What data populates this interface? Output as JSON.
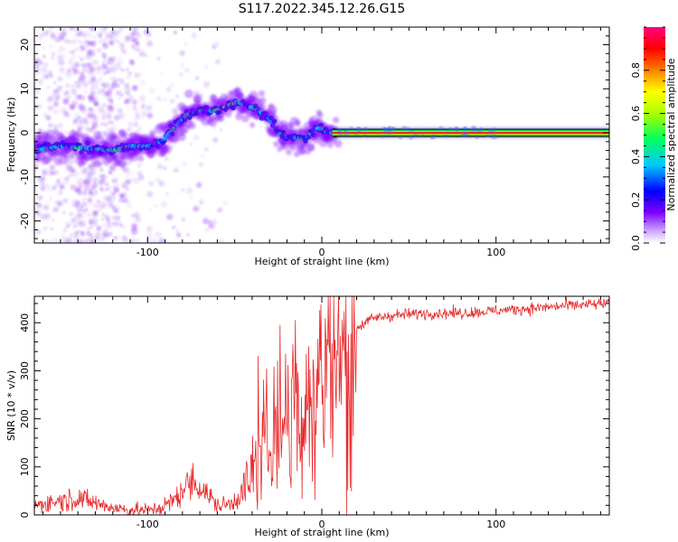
{
  "title": "S117.2022.345.12.26.G15",
  "chart_data": [
    {
      "type": "heatmap",
      "xlabel": "Height of straight line (km)",
      "ylabel": "Frequency (Hz)",
      "xlim": [
        -165,
        165
      ],
      "ylim": [
        -25,
        24
      ],
      "xticks": [
        -100,
        0,
        100
      ],
      "yticks": [
        -20,
        -10,
        0,
        10,
        20
      ],
      "grid": false,
      "ridge_track": {
        "x": [
          -165,
          -150,
          -135,
          -120,
          -110,
          -100,
          -92,
          -85,
          -78,
          -70,
          -62,
          -55,
          -48,
          -42,
          -36,
          -30,
          -25,
          -20,
          -15,
          -10,
          -6,
          -3,
          0,
          3,
          6,
          165
        ],
        "y": [
          -4,
          -3,
          -3.5,
          -4,
          -3,
          -3,
          -2,
          1,
          4,
          5,
          5,
          6,
          7,
          6,
          5,
          3,
          0,
          -1,
          -1,
          -1.5,
          0,
          1,
          1,
          0,
          0,
          0
        ]
      },
      "colorbar": {
        "label": "Normalized spectral amplitude",
        "range": [
          0,
          1
        ],
        "ticks": [
          0.0,
          0.2,
          0.4,
          0.6,
          0.8
        ],
        "colormap": [
          "#ffffff",
          "#7e00ff",
          "#0000ff",
          "#00c8ff",
          "#00ff00",
          "#ffff00",
          "#ff8000",
          "#ff0000",
          "#ff0080"
        ]
      }
    },
    {
      "type": "line",
      "xlabel": "Height of straight line (km)",
      "ylabel": "SNR (10 * v/v)",
      "xlim": [
        -165,
        165
      ],
      "ylim": [
        0,
        455
      ],
      "xticks": [
        -100,
        0,
        100
      ],
      "yticks": [
        0,
        100,
        200,
        300,
        400
      ],
      "grid": false,
      "color": "#e8282a",
      "series": [
        {
          "x": [
            -165,
            -150,
            -140,
            -130,
            -120,
            -110,
            -100,
            -92,
            -85,
            -80,
            -75,
            -70,
            -65,
            -60,
            -55,
            -50,
            -45,
            -40,
            -35,
            -30,
            -25,
            -20,
            -15,
            -10,
            -5,
            0,
            5,
            10,
            15,
            20,
            25,
            30,
            40,
            60,
            80,
            100,
            120,
            140,
            165
          ],
          "values": [
            20,
            30,
            35,
            25,
            15,
            10,
            10,
            15,
            30,
            50,
            70,
            60,
            40,
            20,
            20,
            30,
            50,
            80,
            130,
            170,
            200,
            210,
            230,
            250,
            280,
            310,
            320,
            330,
            350,
            390,
            400,
            410,
            415,
            420,
            420,
            425,
            430,
            435,
            440
          ]
        }
      ]
    }
  ]
}
